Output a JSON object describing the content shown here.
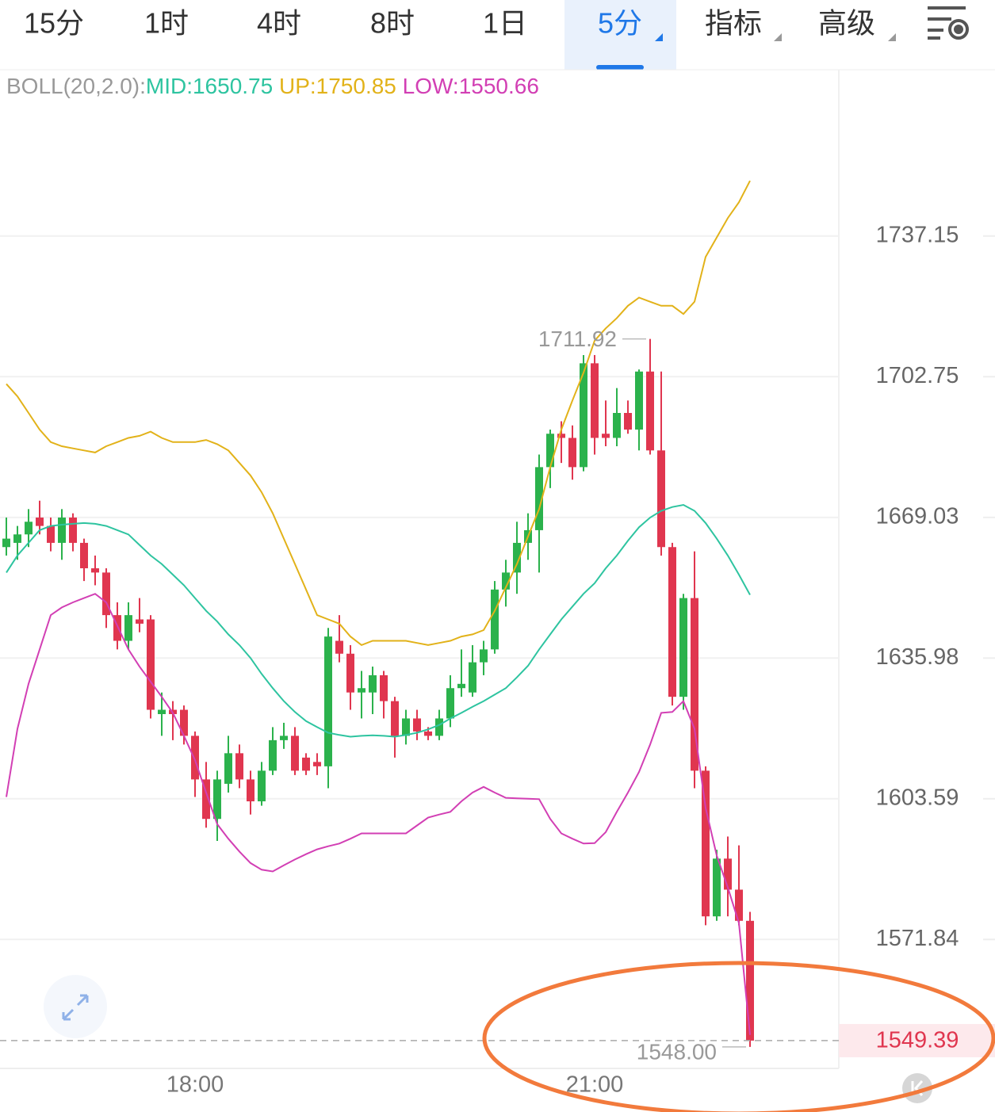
{
  "tabs": {
    "items": [
      "15分",
      "1时",
      "4时",
      "8时",
      "1日",
      "5分",
      "指标",
      "高级"
    ],
    "active": 5
  },
  "chart_data": {
    "type": "candlestick",
    "indicator": "BOLL(20,2.0):",
    "log_scale": true,
    "grid": true,
    "ylim": [
      1543.8,
      1778.3
    ],
    "yticks": [
      1737.15,
      1702.75,
      1669.03,
      1635.98,
      1603.59,
      1571.84
    ],
    "up_color": "#2bb24c",
    "down_color": "#e0364f",
    "high_label": "1711.92",
    "low_label": "1548.00",
    "last_label": "1549.39",
    "categories": [
      null,
      null,
      null,
      null,
      null,
      null,
      null,
      null,
      null,
      null,
      null,
      null,
      null,
      null,
      null,
      null,
      null,
      "18:00",
      null,
      null,
      null,
      null,
      null,
      null,
      null,
      null,
      null,
      null,
      null,
      null,
      null,
      null,
      null,
      null,
      null,
      null,
      null,
      null,
      null,
      null,
      null,
      null,
      null,
      null,
      null,
      null,
      null,
      null,
      null,
      null,
      null,
      null,
      null,
      "21:00",
      null,
      null,
      null,
      null,
      null,
      null,
      null,
      null,
      null,
      null,
      null,
      null,
      null,
      null
    ],
    "open": [
      1662,
      1663,
      1665,
      1669,
      1667,
      1663,
      1669,
      1663,
      1657,
      1656,
      1646,
      1640,
      1645,
      1645,
      1623,
      1624,
      1624,
      1618,
      1608,
      1599,
      1607,
      1614,
      1608,
      1603,
      1610,
      1617,
      1618,
      1613,
      1612,
      1611,
      1640,
      1637,
      1628,
      1628,
      1632,
      1626,
      1618,
      1622,
      1619,
      1618,
      1622,
      1629,
      1628,
      1635,
      1638,
      1652,
      1656,
      1663,
      1666,
      1681,
      1689,
      1688,
      1681,
      1706,
      1689,
      1688,
      1694,
      1690,
      1704,
      1685,
      1662,
      1627,
      1650,
      1610,
      1577,
      1590,
      1583,
      1576
    ],
    "high": [
      1669,
      1667,
      1671,
      1673,
      1669,
      1671,
      1670,
      1664,
      1660,
      1657,
      1649,
      1649,
      1650,
      1646,
      1628,
      1626,
      1625,
      1619,
      1612,
      1610,
      1618,
      1616,
      1610,
      1612,
      1620,
      1621,
      1620,
      1614,
      1614,
      1643,
      1646,
      1639,
      1633,
      1634,
      1633,
      1627,
      1624,
      1624,
      1620,
      1624,
      1632,
      1638,
      1639,
      1640,
      1654,
      1659,
      1668,
      1670,
      1684,
      1690,
      1692,
      1691,
      1708,
      1708,
      1697,
      1700,
      1697,
      1704.5,
      1711.92,
      1704,
      1663,
      1651,
      1661,
      1611,
      1592,
      1595,
      1593,
      1578
    ],
    "low": [
      1660,
      1659,
      1662,
      1665,
      1661,
      1659,
      1661,
      1654,
      1653,
      1643,
      1638,
      1638,
      1642,
      1622,
      1618,
      1617,
      1616,
      1604,
      1597,
      1594,
      1605,
      1606,
      1600,
      1602,
      1609,
      1615,
      1609,
      1609,
      1609,
      1606,
      1635,
      1624,
      1622,
      1623,
      1622,
      1613,
      1616,
      1617,
      1617,
      1617,
      1620,
      1627,
      1627,
      1632,
      1637,
      1648,
      1651,
      1659,
      1656,
      1676,
      1682,
      1678,
      1680,
      1684,
      1686,
      1686,
      1689,
      1685,
      1684,
      1660,
      1625,
      1624,
      1606,
      1575,
      1576,
      1577,
      1575,
      1548
    ],
    "close": [
      1664,
      1665,
      1668,
      1667,
      1663,
      1669,
      1663,
      1657,
      1656,
      1646,
      1640,
      1646,
      1644,
      1624,
      1624,
      1623,
      1618,
      1608,
      1599,
      1608,
      1614,
      1608,
      1603,
      1610,
      1617,
      1618,
      1610,
      1610,
      1611,
      1641,
      1637,
      1628,
      1629,
      1632,
      1626,
      1618,
      1622,
      1619,
      1618,
      1622,
      1629,
      1630,
      1635,
      1638,
      1652,
      1656,
      1663,
      1666,
      1681,
      1689,
      1688,
      1681,
      1706,
      1688,
      1688,
      1694,
      1690,
      1704,
      1685,
      1662,
      1627,
      1650,
      1610,
      1577,
      1590,
      1583,
      1576,
      1549.39
    ],
    "lines": [
      {
        "label": "MID:1650.75",
        "color": "#2ec4a0",
        "values": [
          1656,
          1660,
          1663,
          1666,
          1667,
          1667.3,
          1667.5,
          1667.7,
          1667.5,
          1667,
          1666,
          1665,
          1662.5,
          1660,
          1658,
          1655.5,
          1653,
          1650,
          1647,
          1644.5,
          1641.5,
          1639,
          1636,
          1632.3,
          1629,
          1626,
          1623.5,
          1621.4,
          1620,
          1618.7,
          1618.2,
          1617.8,
          1618,
          1618.1,
          1618,
          1617.8,
          1618.2,
          1618.7,
          1619.5,
          1620.5,
          1622,
          1623.3,
          1624.7,
          1626,
          1627.5,
          1629,
          1631.5,
          1634.2,
          1638,
          1641.5,
          1645,
          1648,
          1651,
          1653.5,
          1657,
          1660,
          1663.5,
          1666.7,
          1669,
          1670.6,
          1671.5,
          1672,
          1670.6,
          1667.7,
          1664,
          1660,
          1655.5,
          1650.75
        ]
      },
      {
        "label": "UP:1750.85",
        "color": "#e2b219",
        "values": [
          1701,
          1698,
          1694,
          1690,
          1687,
          1686,
          1685.5,
          1685,
          1684.5,
          1686,
          1687,
          1688,
          1688.5,
          1689.5,
          1688,
          1687,
          1687,
          1687,
          1687.5,
          1686.5,
          1685,
          1682,
          1679,
          1675,
          1670,
          1664,
          1658,
          1652,
          1646,
          1645,
          1644,
          1641,
          1639,
          1640,
          1640,
          1640,
          1640,
          1639.5,
          1639,
          1639.5,
          1640,
          1641,
          1641.5,
          1642.5,
          1647,
          1652.5,
          1658,
          1664.5,
          1671,
          1681,
          1690,
          1697,
          1703.7,
          1711.5,
          1714.5,
          1717,
          1720,
          1722,
          1721,
          1720,
          1720,
          1718,
          1721,
          1732,
          1736.8,
          1741.6,
          1745.5,
          1750.85
        ]
      },
      {
        "label": "LOW:1550.66",
        "color": "#d23fb4",
        "values": [
          1604,
          1619.6,
          1630,
          1638,
          1646,
          1647.8,
          1649,
          1650,
          1651,
          1649,
          1643.5,
          1638,
          1634,
          1630.5,
          1627,
          1623.3,
          1618,
          1612.4,
          1605,
          1597.8,
          1594.5,
          1591.6,
          1589,
          1587.5,
          1587.1,
          1588.5,
          1589.8,
          1591,
          1592.1,
          1592.8,
          1593.4,
          1594.5,
          1595.7,
          1595.7,
          1595.7,
          1595.7,
          1595.7,
          1597.5,
          1599.3,
          1600,
          1600.6,
          1603,
          1605,
          1606.3,
          1605,
          1603.8,
          1603.7,
          1603.6,
          1603.5,
          1599,
          1595.7,
          1594.5,
          1593.4,
          1593.5,
          1596,
          1600.6,
          1605,
          1609.7,
          1616,
          1623.3,
          1623.5,
          1626,
          1619.6,
          1601.5,
          1590.7,
          1583.5,
          1575.5,
          1550.66
        ]
      }
    ]
  }
}
